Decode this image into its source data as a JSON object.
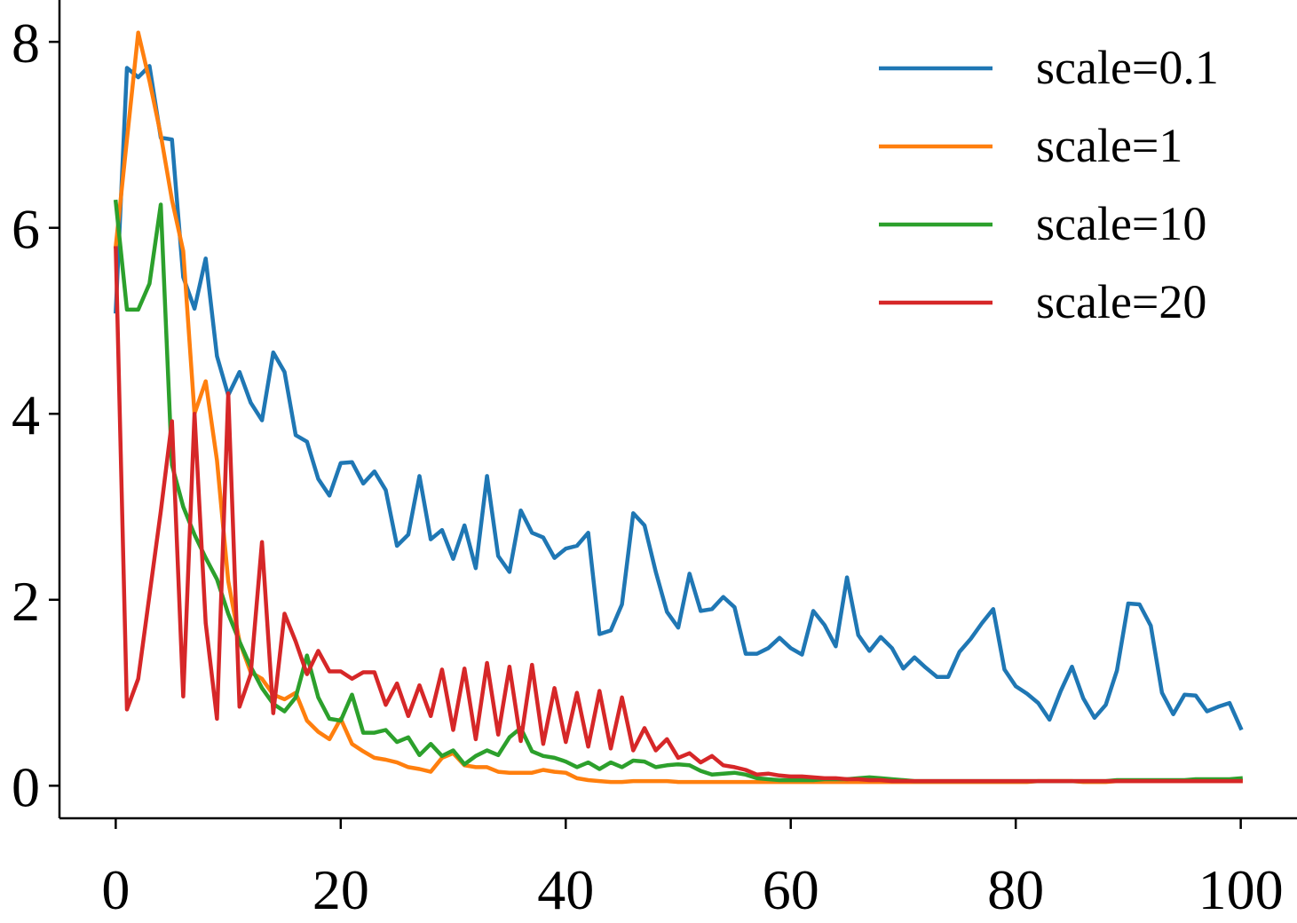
{
  "chart_data": {
    "type": "line",
    "title": "",
    "xlabel": "",
    "ylabel": "",
    "xlim": [
      -5,
      105
    ],
    "ylim": [
      -0.35,
      8.45
    ],
    "xticks": [
      0,
      20,
      40,
      60,
      80,
      100
    ],
    "yticks": [
      0,
      2,
      4,
      6,
      8
    ],
    "grid": false,
    "legend_position": "top-right",
    "x": [
      0,
      1,
      2,
      3,
      4,
      5,
      6,
      7,
      8,
      9,
      10,
      11,
      12,
      13,
      14,
      15,
      16,
      17,
      18,
      19,
      20,
      21,
      22,
      23,
      24,
      25,
      26,
      27,
      28,
      29,
      30,
      31,
      32,
      33,
      34,
      35,
      36,
      37,
      38,
      39,
      40,
      41,
      42,
      43,
      44,
      45,
      46,
      47,
      48,
      49,
      50,
      51,
      52,
      53,
      54,
      55,
      56,
      57,
      58,
      59,
      60,
      61,
      62,
      63,
      64,
      65,
      66,
      67,
      68,
      69,
      70,
      71,
      72,
      73,
      74,
      75,
      76,
      77,
      78,
      79,
      80,
      81,
      82,
      83,
      84,
      85,
      86,
      87,
      88,
      89,
      90,
      91,
      92,
      93,
      94,
      95,
      96,
      97,
      98,
      99,
      100
    ],
    "series": [
      {
        "name": "scale=0.1",
        "color": "#1f77b4",
        "values": [
          5.1,
          7.72,
          7.62,
          7.74,
          6.97,
          6.95,
          5.47,
          5.13,
          5.67,
          4.62,
          4.2,
          4.45,
          4.12,
          3.93,
          4.66,
          4.45,
          3.77,
          3.7,
          3.3,
          3.12,
          3.47,
          3.48,
          3.25,
          3.38,
          3.18,
          2.58,
          2.7,
          3.33,
          2.65,
          2.75,
          2.44,
          2.8,
          2.34,
          3.33,
          2.47,
          2.3,
          2.96,
          2.72,
          2.67,
          2.45,
          2.55,
          2.58,
          2.72,
          1.63,
          1.67,
          1.95,
          2.93,
          2.8,
          2.3,
          1.87,
          1.7,
          2.28,
          1.88,
          1.9,
          2.03,
          1.92,
          1.42,
          1.42,
          1.48,
          1.59,
          1.48,
          1.41,
          1.88,
          1.73,
          1.5,
          2.24,
          1.62,
          1.45,
          1.6,
          1.48,
          1.26,
          1.38,
          1.27,
          1.17,
          1.17,
          1.44,
          1.58,
          1.75,
          1.9,
          1.25,
          1.07,
          0.99,
          0.89,
          0.71,
          1.02,
          1.28,
          0.94,
          0.73,
          0.87,
          1.24,
          1.96,
          1.95,
          1.72,
          1.0,
          0.77,
          0.98,
          0.97,
          0.8,
          0.85,
          0.89,
          0.62
        ]
      },
      {
        "name": "scale=1",
        "color": "#ff7f0e",
        "values": [
          5.8,
          6.95,
          8.1,
          7.58,
          7.0,
          6.3,
          5.75,
          4.0,
          4.35,
          3.5,
          2.2,
          1.55,
          1.22,
          1.15,
          0.98,
          0.93,
          1.0,
          0.7,
          0.58,
          0.5,
          0.72,
          0.45,
          0.37,
          0.3,
          0.28,
          0.25,
          0.2,
          0.18,
          0.15,
          0.3,
          0.35,
          0.22,
          0.2,
          0.2,
          0.15,
          0.14,
          0.14,
          0.14,
          0.17,
          0.15,
          0.14,
          0.08,
          0.06,
          0.05,
          0.04,
          0.04,
          0.05,
          0.05,
          0.05,
          0.05,
          0.04,
          0.04,
          0.04,
          0.04,
          0.04,
          0.04,
          0.04,
          0.04,
          0.04,
          0.04,
          0.04,
          0.04,
          0.04,
          0.04,
          0.04,
          0.04,
          0.04,
          0.04,
          0.04,
          0.04,
          0.04,
          0.04,
          0.04,
          0.04,
          0.04,
          0.04,
          0.04,
          0.04,
          0.04,
          0.04,
          0.04,
          0.04,
          0.05,
          0.05,
          0.05,
          0.05,
          0.04,
          0.04,
          0.04,
          0.05,
          0.05,
          0.05,
          0.05,
          0.05,
          0.05,
          0.05,
          0.05,
          0.05,
          0.05,
          0.05,
          0.05
        ]
      },
      {
        "name": "scale=10",
        "color": "#2ca02c",
        "values": [
          6.28,
          5.12,
          5.12,
          5.4,
          6.25,
          3.45,
          3.0,
          2.7,
          2.45,
          2.22,
          1.85,
          1.55,
          1.28,
          1.05,
          0.88,
          0.8,
          0.95,
          1.4,
          0.95,
          0.72,
          0.7,
          0.98,
          0.57,
          0.57,
          0.6,
          0.47,
          0.52,
          0.33,
          0.45,
          0.32,
          0.38,
          0.23,
          0.32,
          0.38,
          0.33,
          0.52,
          0.62,
          0.37,
          0.32,
          0.3,
          0.26,
          0.2,
          0.25,
          0.18,
          0.25,
          0.2,
          0.27,
          0.26,
          0.2,
          0.22,
          0.23,
          0.22,
          0.16,
          0.12,
          0.13,
          0.14,
          0.12,
          0.08,
          0.07,
          0.06,
          0.06,
          0.06,
          0.06,
          0.07,
          0.07,
          0.07,
          0.08,
          0.09,
          0.08,
          0.07,
          0.06,
          0.05,
          0.05,
          0.05,
          0.05,
          0.05,
          0.05,
          0.05,
          0.05,
          0.05,
          0.05,
          0.05,
          0.05,
          0.05,
          0.05,
          0.05,
          0.05,
          0.05,
          0.05,
          0.06,
          0.06,
          0.06,
          0.06,
          0.06,
          0.06,
          0.06,
          0.07,
          0.07,
          0.07,
          0.07,
          0.08
        ]
      },
      {
        "name": "scale=20",
        "color": "#d62728",
        "values": [
          5.78,
          0.82,
          1.15,
          2.05,
          2.95,
          3.92,
          0.96,
          4.0,
          1.75,
          0.72,
          4.22,
          0.85,
          1.2,
          2.62,
          0.78,
          1.85,
          1.55,
          1.2,
          1.45,
          1.23,
          1.23,
          1.15,
          1.22,
          1.22,
          0.87,
          1.1,
          0.75,
          1.08,
          0.75,
          1.25,
          0.6,
          1.26,
          0.5,
          1.32,
          0.55,
          1.28,
          0.48,
          1.3,
          0.45,
          1.05,
          0.47,
          1.0,
          0.42,
          1.02,
          0.4,
          0.95,
          0.38,
          0.62,
          0.38,
          0.5,
          0.3,
          0.35,
          0.25,
          0.32,
          0.22,
          0.2,
          0.17,
          0.12,
          0.13,
          0.11,
          0.1,
          0.1,
          0.09,
          0.08,
          0.08,
          0.07,
          0.07,
          0.06,
          0.06,
          0.05,
          0.05,
          0.05,
          0.05,
          0.05,
          0.05,
          0.05,
          0.05,
          0.05,
          0.05,
          0.05,
          0.05,
          0.05,
          0.05,
          0.05,
          0.05,
          0.05,
          0.05,
          0.05,
          0.05,
          0.05,
          0.05,
          0.05,
          0.05,
          0.05,
          0.05,
          0.05,
          0.05,
          0.05,
          0.05,
          0.05,
          0.05
        ]
      }
    ]
  }
}
